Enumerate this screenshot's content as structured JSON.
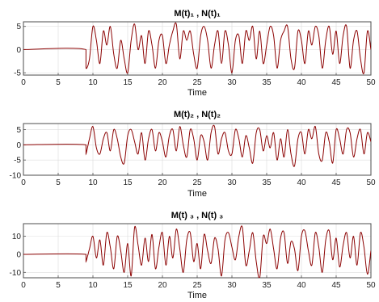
{
  "chart_data": [
    {
      "type": "line",
      "title": "M(t)₁ , N(t)₁",
      "xlabel": "Time",
      "ylabel": "",
      "xlim": [
        0,
        50
      ],
      "ylim": [
        -5.5,
        6
      ],
      "xticks": [
        "0",
        "5",
        "10",
        "15",
        "20",
        "25",
        "30",
        "35",
        "40",
        "45",
        "50"
      ],
      "yticks": [
        "5",
        "0",
        "-5"
      ],
      "ytick_values": [
        5,
        0,
        -5
      ],
      "grid": true,
      "series": [
        {
          "color": "#8b0000",
          "x": [
            0,
            9,
            9,
            9.5,
            10,
            10.5,
            11,
            11.5,
            12,
            12.5,
            13,
            13.5,
            14,
            14.5,
            15,
            15.5,
            16,
            16.5,
            17,
            17.5,
            18,
            18.5,
            19,
            19.5,
            20,
            20.5,
            21,
            21.5,
            22,
            22.5,
            23,
            23.5,
            24,
            24.5,
            25,
            25.5,
            26,
            26.5,
            27,
            27.5,
            28,
            28.5,
            29,
            29.5,
            30,
            30.5,
            31,
            31.5,
            32,
            32.5,
            33,
            33.5,
            34,
            34.5,
            35,
            35.5,
            36,
            36.5,
            37,
            37.5,
            38,
            38.5,
            39,
            39.5,
            40,
            40.5,
            41,
            41.5,
            42,
            42.5,
            43,
            43.5,
            44,
            44.5,
            45,
            45.5,
            46,
            46.5,
            47,
            47.5,
            48,
            48.5,
            49,
            49.5,
            50
          ],
          "y": [
            0,
            0,
            -4,
            -2,
            5,
            2,
            -3,
            4,
            1,
            5,
            -1,
            -4,
            2,
            -2,
            -5,
            2,
            5.5,
            0,
            3,
            -3,
            4,
            1,
            -4,
            2,
            3,
            -3,
            1,
            4,
            5.5,
            -2,
            4,
            2,
            4,
            -1,
            -4,
            3,
            5,
            2,
            -4,
            1,
            4,
            -3,
            4,
            1,
            -5,
            2,
            3,
            -3,
            4,
            2,
            5,
            -2,
            4,
            -3,
            1,
            5,
            3,
            -4,
            2,
            4,
            5,
            -2,
            -4,
            4,
            2,
            -3,
            4,
            1,
            5,
            3,
            -4,
            2,
            5,
            -1,
            4,
            -3,
            3,
            5,
            -4,
            2,
            4,
            -2,
            -5,
            4,
            0
          ]
        }
      ]
    },
    {
      "type": "line",
      "title": "M(t)₂ , N(t)₂",
      "xlabel": "Time",
      "ylabel": "",
      "xlim": [
        0,
        50
      ],
      "ylim": [
        -10,
        7
      ],
      "xticks": [
        "0",
        "5",
        "10",
        "15",
        "20",
        "25",
        "30",
        "35",
        "40",
        "45",
        "50"
      ],
      "yticks": [
        "5",
        "0",
        "-5",
        "-10"
      ],
      "ytick_values": [
        5,
        0,
        -5,
        -10
      ],
      "grid": true,
      "series": [
        {
          "color": "#8b0000",
          "x": [
            0,
            9,
            9,
            9.5,
            10,
            10.5,
            11,
            11.5,
            12,
            12.5,
            13,
            13.5,
            14,
            14.5,
            15,
            15.5,
            16,
            16.5,
            17,
            17.5,
            18,
            18.5,
            19,
            19.5,
            20,
            20.5,
            21,
            21.5,
            22,
            22.5,
            23,
            23.5,
            24,
            24.5,
            25,
            25.5,
            26,
            26.5,
            27,
            27.5,
            28,
            28.5,
            29,
            29.5,
            30,
            30.5,
            31,
            31.5,
            32,
            32.5,
            33,
            33.5,
            34,
            34.5,
            35,
            35.5,
            36,
            36.5,
            37,
            37.5,
            38,
            38.5,
            39,
            39.5,
            40,
            40.5,
            41,
            41.5,
            42,
            42.5,
            43,
            43.5,
            44,
            44.5,
            45,
            45.5,
            46,
            46.5,
            47,
            47.5,
            48,
            48.5,
            49,
            49.5,
            50
          ],
          "y": [
            0,
            0,
            -3,
            2,
            6,
            -1,
            -3,
            2,
            4,
            -2,
            5,
            2,
            -4,
            -6,
            3,
            5,
            1,
            -3,
            4,
            -5,
            2,
            5,
            -2,
            4,
            1,
            -4,
            3,
            5,
            -2,
            6,
            0,
            -4,
            5,
            2,
            -5,
            3,
            1,
            -5,
            4,
            6,
            -3,
            2,
            4,
            -2,
            -3,
            5,
            2,
            -4,
            3,
            -1,
            -6,
            4,
            5,
            -2,
            3,
            -1,
            4,
            -5,
            2,
            -4,
            5,
            -3,
            -7,
            2,
            4,
            -3,
            5,
            2,
            6,
            -3,
            -5,
            4,
            1,
            -6,
            5,
            2,
            -3,
            5,
            4,
            -4,
            2,
            5,
            -3,
            4,
            1
          ]
        }
      ]
    },
    {
      "type": "line",
      "title": "M(t) ₃ , N(t) ₃",
      "xlabel": "Time",
      "ylabel": "",
      "xlim": [
        0,
        50
      ],
      "ylim": [
        -13,
        17
      ],
      "xticks": [
        "0",
        "5",
        "10",
        "15",
        "20",
        "25",
        "30",
        "35",
        "40",
        "45",
        "50"
      ],
      "yticks": [
        "10",
        "0",
        "-10"
      ],
      "ytick_values": [
        10,
        0,
        -10
      ],
      "grid": true,
      "series": [
        {
          "color": "#8b0000",
          "x": [
            0,
            9,
            9,
            9.5,
            10,
            10.5,
            11,
            11.5,
            12,
            12.5,
            13,
            13.5,
            14,
            14.5,
            15,
            15.5,
            16,
            16.5,
            17,
            17.5,
            18,
            18.5,
            19,
            19.5,
            20,
            20.5,
            21,
            21.5,
            22,
            22.5,
            23,
            23.5,
            24,
            24.5,
            25,
            25.5,
            26,
            26.5,
            27,
            27.5,
            28,
            28.5,
            29,
            29.5,
            30,
            30.5,
            31,
            31.5,
            32,
            32.5,
            33,
            33.5,
            34,
            34.5,
            35,
            35.5,
            36,
            36.5,
            37,
            37.5,
            38,
            38.5,
            39,
            39.5,
            40,
            40.5,
            41,
            41.5,
            42,
            42.5,
            43,
            43.5,
            44,
            44.5,
            45,
            45.5,
            46,
            46.5,
            47,
            47.5,
            48,
            48.5,
            49,
            49.5,
            50
          ],
          "y": [
            0,
            0,
            -4,
            3,
            10,
            -2,
            8,
            -6,
            12,
            4,
            -8,
            10,
            2,
            -10,
            6,
            -12,
            15,
            5,
            -6,
            9,
            -4,
            11,
            -8,
            4,
            12,
            -6,
            10,
            -2,
            14,
            3,
            -10,
            8,
            12,
            -4,
            6,
            -8,
            11,
            2,
            -5,
            9,
            3,
            -12,
            8,
            12,
            4,
            -3,
            10,
            15,
            -6,
            2,
            12,
            -4,
            -13,
            10,
            6,
            14,
            3,
            -8,
            9,
            12,
            -5,
            7,
            3,
            -9,
            10,
            13,
            2,
            -6,
            12,
            4,
            -10,
            8,
            13,
            -3,
            9,
            -7,
            5,
            12,
            -2,
            10,
            -6,
            12,
            4,
            -11,
            2
          ]
        }
      ]
    }
  ]
}
